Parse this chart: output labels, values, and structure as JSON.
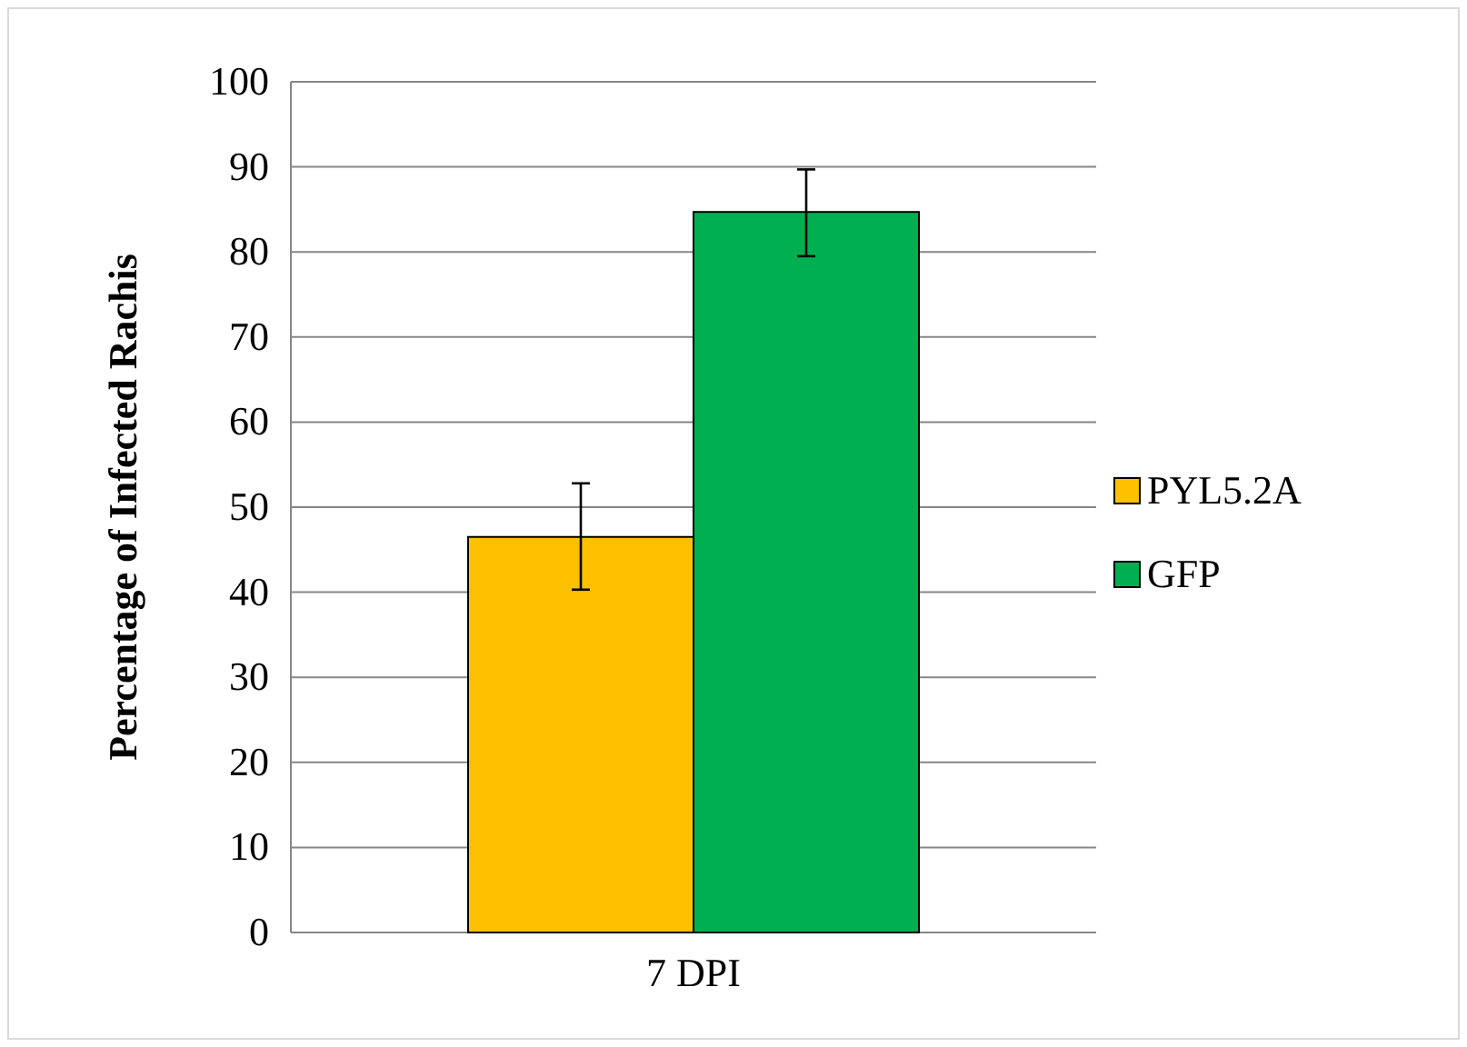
{
  "chart_data": {
    "type": "bar",
    "ylabel": "Percentage of Infected Rachis",
    "categories": [
      "7 DPI"
    ],
    "series": [
      {
        "name": "PYL5.2A",
        "color": "#ffc000",
        "values": [
          46.5
        ],
        "errors": [
          [
            40.3,
            52.8
          ]
        ]
      },
      {
        "name": "GFP",
        "color": "#00b050",
        "values": [
          84.7
        ],
        "errors": [
          [
            79.5,
            89.7
          ]
        ]
      }
    ],
    "ylim": [
      0,
      100
    ],
    "yticks": [
      0,
      10,
      20,
      30,
      40,
      50,
      60,
      70,
      80,
      90,
      100
    ],
    "grid": "y",
    "legend": "right"
  }
}
